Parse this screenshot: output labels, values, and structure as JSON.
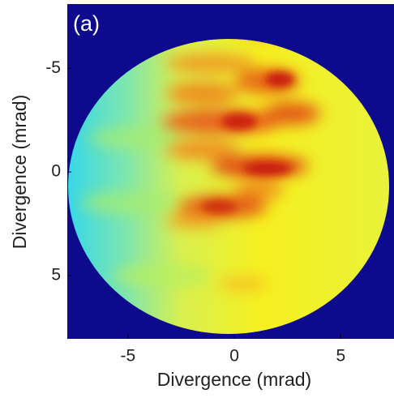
{
  "chart_data": {
    "type": "image",
    "panel_label": "(a)",
    "xlabel": "Divergence (mrad)",
    "ylabel": "Divergence (mrad)",
    "xlim": [
      -7.85,
      7.5
    ],
    "xticks": [
      -5,
      0,
      5
    ],
    "ylim": [
      -8.1,
      8.05
    ],
    "y_inverted": true,
    "yticks": [
      -5,
      0,
      5
    ]
  }
}
